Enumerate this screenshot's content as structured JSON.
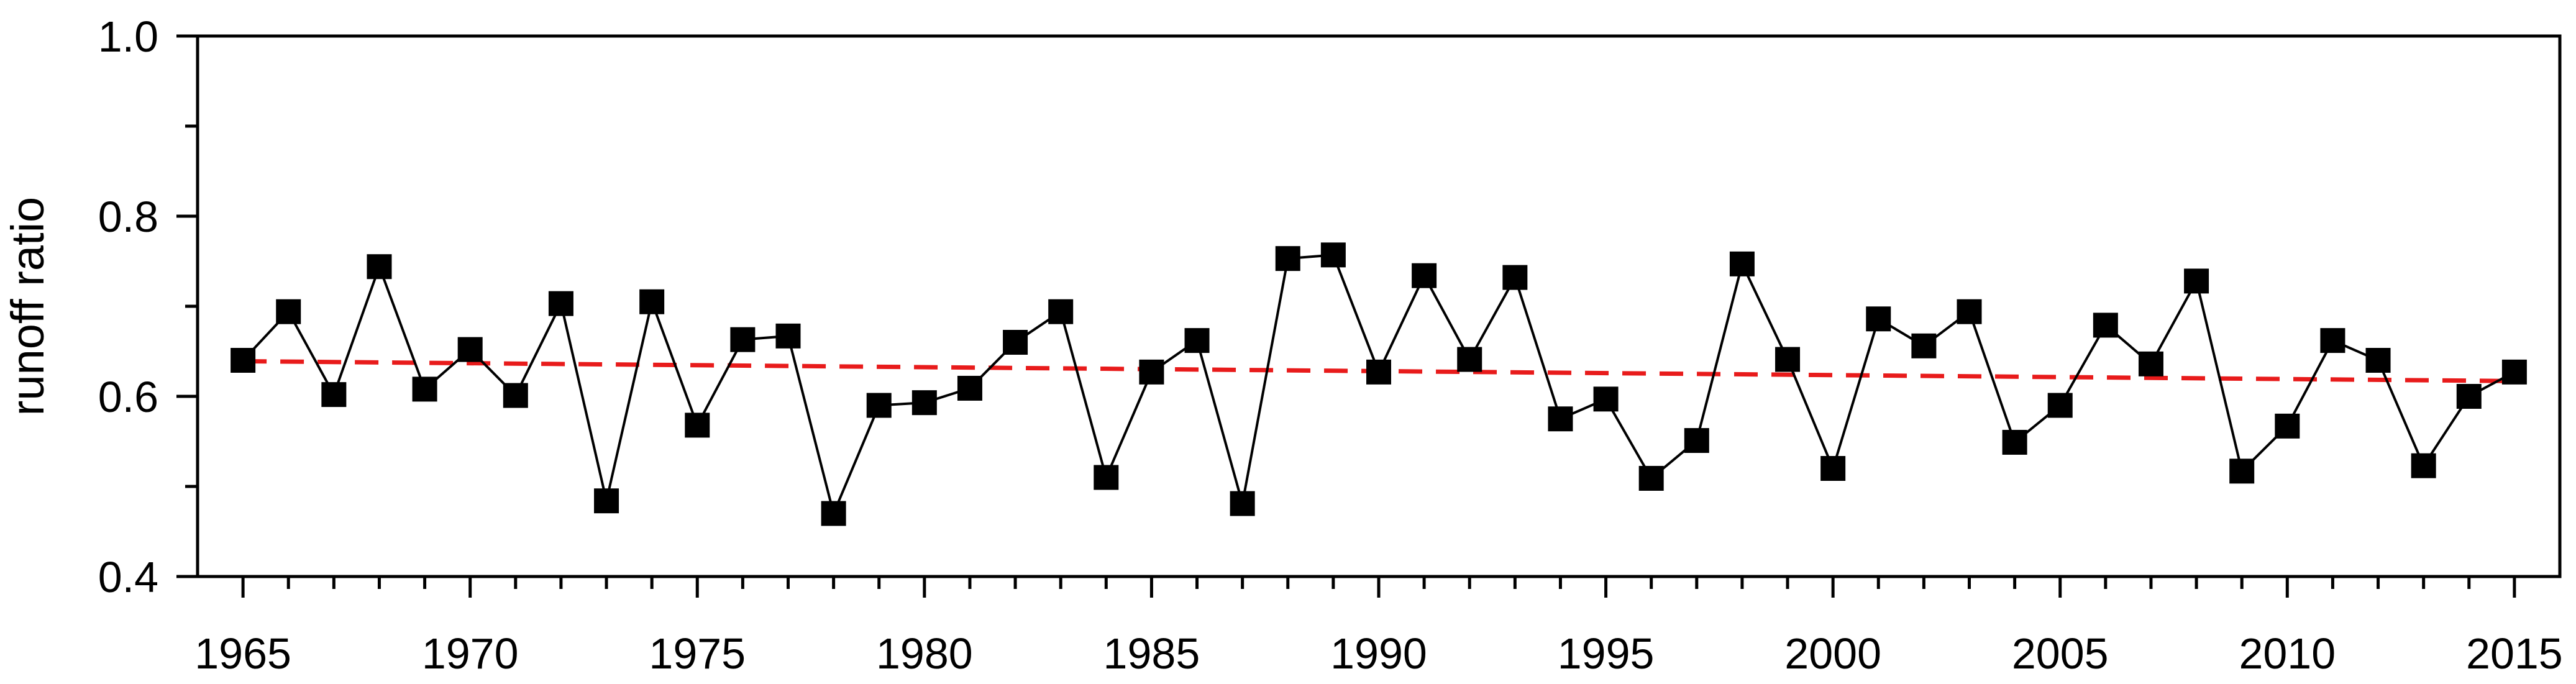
{
  "chart_data": {
    "type": "line",
    "title": "",
    "xlabel": "",
    "ylabel": "runoff ratio",
    "xlim": [
      1964,
      2016
    ],
    "ylim": [
      0.4,
      1.0
    ],
    "grid": false,
    "legend": "none",
    "x_ticks": [
      1965,
      1970,
      1975,
      1980,
      1985,
      1990,
      1995,
      2000,
      2005,
      2010,
      2015
    ],
    "y_ticks": [
      0.4,
      0.6,
      0.8,
      1.0
    ],
    "y_tick_labels": [
      "0.4",
      "0.6",
      "0.8",
      "1.0"
    ],
    "x": [
      1965,
      1966,
      1967,
      1968,
      1969,
      1970,
      1971,
      1972,
      1973,
      1974,
      1975,
      1976,
      1977,
      1978,
      1979,
      1980,
      1981,
      1982,
      1983,
      1984,
      1985,
      1986,
      1987,
      1988,
      1989,
      1990,
      1991,
      1992,
      1993,
      1994,
      1995,
      1996,
      1997,
      1998,
      1999,
      2000,
      2001,
      2002,
      2003,
      2004,
      2005,
      2006,
      2007,
      2008,
      2009,
      2010,
      2011,
      2012,
      2013,
      2014,
      2015
    ],
    "series": [
      {
        "style": "line-markers",
        "marker": "square",
        "color": "#000000",
        "values": [
          0.64,
          0.694,
          0.602,
          0.744,
          0.608,
          0.652,
          0.601,
          0.703,
          0.484,
          0.705,
          0.568,
          0.663,
          0.667,
          0.47,
          0.59,
          0.593,
          0.609,
          0.66,
          0.694,
          0.51,
          0.627,
          0.662,
          0.481,
          0.753,
          0.757,
          0.627,
          0.734,
          0.641,
          0.732,
          0.575,
          0.597,
          0.509,
          0.551,
          0.747,
          0.641,
          0.52,
          0.686,
          0.656,
          0.694,
          0.549,
          0.59,
          0.679,
          0.636,
          0.728,
          0.517,
          0.567,
          0.662,
          0.64,
          0.523,
          0.6,
          0.627
        ]
      },
      {
        "style": "dashed-trend",
        "color": "#e81b1b",
        "x": [
          1965,
          2015
        ],
        "values": [
          0.639,
          0.617
        ]
      }
    ]
  }
}
